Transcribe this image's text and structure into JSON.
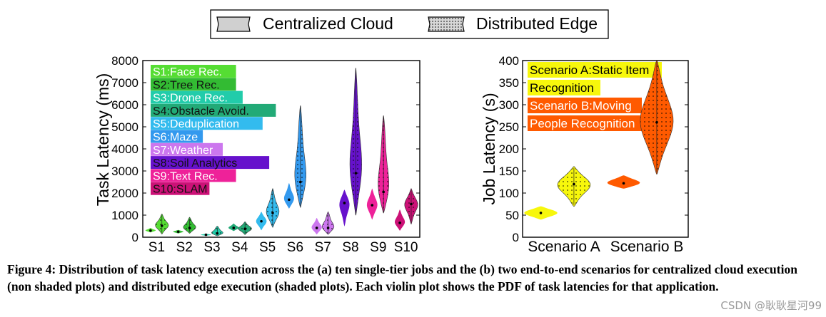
{
  "legend": {
    "cloud_label": "Centralized Cloud",
    "edge_label": "Distributed Edge"
  },
  "chart_data": [
    {
      "type": "violin",
      "ylabel": "Task Latency (ms)",
      "ylim": [
        0,
        8000
      ],
      "yticks": [
        "0",
        "1000",
        "2000",
        "3000",
        "4000",
        "5000",
        "6000",
        "7000",
        "8000"
      ],
      "categories": [
        "S1",
        "S2",
        "S3",
        "S4",
        "S5",
        "S6",
        "S7",
        "S8",
        "S9",
        "S10"
      ],
      "app_labels": [
        "S1:Face Rec.",
        "S2:Tree Rec.",
        "S3:Drone Rec.",
        "S4:Obstacle Avoid.",
        "S5:Deduplication",
        "S6:Maze",
        "S7:Weather",
        "S8:Soil Analytics",
        "S9:Text Rec.",
        "S10:SLAM"
      ],
      "colors": [
        "#55dd33",
        "#33bb33",
        "#22ccaa",
        "#22aa77",
        "#33bbee",
        "#3399ee",
        "#cc77ee",
        "#6611cc",
        "#ee2299",
        "#cc1177"
      ],
      "series": [
        {
          "name": "Centralized Cloud",
          "min": [
            220,
            170,
            60,
            280,
            320,
            1300,
            130,
            500,
            800,
            300
          ],
          "max": [
            420,
            330,
            160,
            620,
            1150,
            2450,
            870,
            2150,
            2200,
            1250
          ],
          "median": [
            300,
            250,
            110,
            420,
            720,
            1700,
            420,
            1550,
            1450,
            650
          ]
        },
        {
          "name": "Distributed Edge",
          "min": [
            150,
            180,
            60,
            120,
            450,
            1350,
            130,
            1000,
            1100,
            600
          ],
          "max": [
            1050,
            900,
            500,
            700,
            2200,
            5950,
            1150,
            7650,
            5500,
            2200
          ],
          "median": [
            520,
            420,
            170,
            380,
            1100,
            2500,
            420,
            2900,
            2050,
            1500
          ]
        }
      ]
    },
    {
      "type": "violin",
      "ylabel": "Job Latency (s)",
      "ylim": [
        0,
        400
      ],
      "yticks": [
        "0",
        "50",
        "100",
        "150",
        "200",
        "250",
        "300",
        "350",
        "400"
      ],
      "categories": [
        "Scenario A",
        "Scenario B"
      ],
      "annotations": [
        "Scenario A:Static Item",
        "Recognition",
        "Scenario B:Moving",
        "People Recognition"
      ],
      "colors": [
        "#f7f70c",
        "#ff5a00"
      ],
      "series": [
        {
          "name": "Centralized Cloud",
          "min": [
            40,
            110
          ],
          "max": [
            70,
            140
          ],
          "median": [
            55,
            122
          ]
        },
        {
          "name": "Distributed Edge",
          "min": [
            70,
            143
          ],
          "max": [
            160,
            400
          ],
          "median": [
            120,
            260
          ]
        }
      ]
    }
  ],
  "caption": "Figure 4:  Distribution of task latency execution across the (a) ten single-tier jobs and the (b) two end-to-end scenarios for centralized cloud execution (non shaded plots) and distributed edge execution (shaded plots). Each violin plot shows the PDF of task latencies for that application.",
  "watermark": "CSDN @耿耿星河99"
}
